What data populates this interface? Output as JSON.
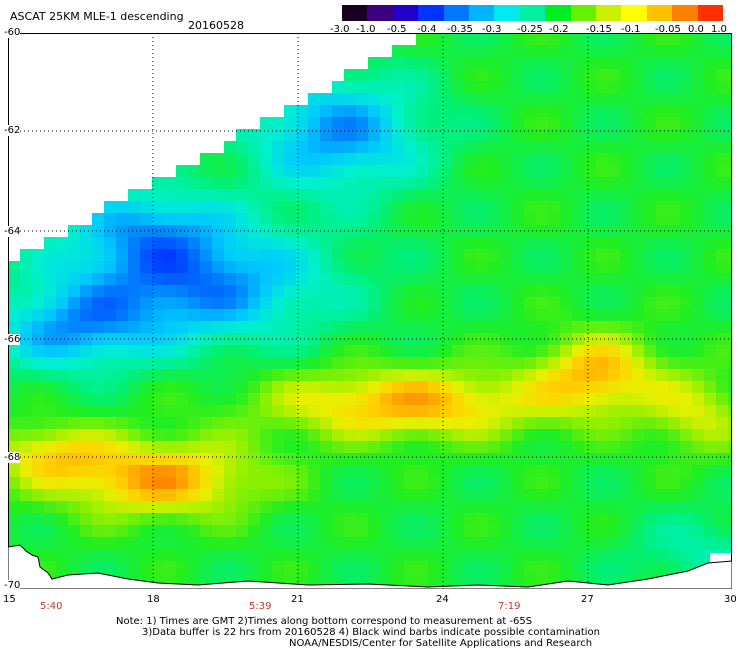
{
  "title": "ASCAT 25KM MLE-1 descending",
  "date": "20160528",
  "colorbar": {
    "tick_labels": [
      "-3.0",
      "-1.0",
      "-0.5",
      "-0.4",
      "-0.35",
      "-0.3",
      "-0.25",
      "-0.2",
      "-0.15",
      "-0.1",
      "-0.05",
      "0.0",
      "1.0"
    ],
    "colors": [
      "#1a0020",
      "#3a0080",
      "#2200cc",
      "#0033ff",
      "#0077ff",
      "#00b4ff",
      "#00e8f0",
      "#00f0a0",
      "#00ee20",
      "#66f000",
      "#c8f000",
      "#ffff00",
      "#ffc000",
      "#ff8000",
      "#ff3000"
    ]
  },
  "map": {
    "lat_labels": [
      "-60",
      "-62",
      "-64",
      "-66",
      "-68",
      "-70"
    ],
    "lon_labels": [
      "15",
      "18",
      "21",
      "24",
      "27",
      "30"
    ],
    "time_labels": [
      "5:40",
      "5:39",
      "7:19"
    ],
    "grid": true,
    "colors": {
      "land": "#ffffff",
      "coast": "#000000",
      "gridline": "#000000"
    }
  },
  "notes": {
    "line1": "Note: 1) Times are GMT 2)Times along bottom correspond to measurement at -65S",
    "line2": "3)Data buffer is 22 hrs from 20160528 4) Black wind barbs indicate possible contamination",
    "line3": "NOAA/NESDIS/Center for Satellite Applications and Research"
  }
}
